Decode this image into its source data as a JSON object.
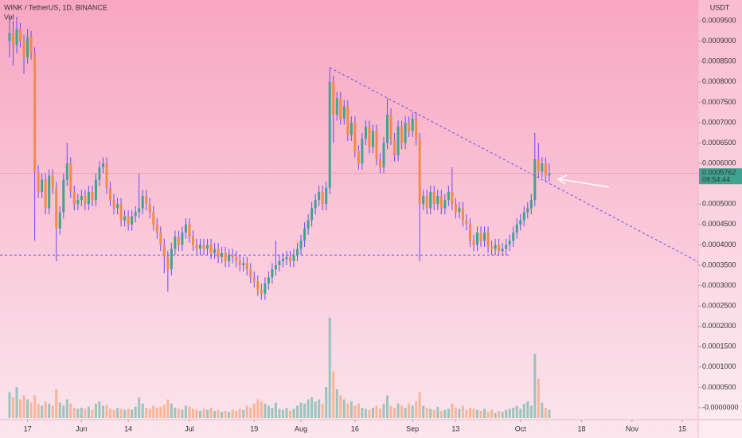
{
  "chart_data": {
    "type": "candlestick",
    "title": "WINK / TetherUS, 1D, BINANCE",
    "volume_label": "Vol",
    "y_axis_label": "USDT",
    "up_color": "#3da58f",
    "down_color": "#f48a45",
    "wick_color": "#6a4cf0",
    "line_color": "#6a4cf0",
    "last_price": {
      "value": 0.0005762,
      "label": "0.0005762"
    },
    "countdown": "09:54:44",
    "xlim": [
      -2.65,
      191.4
    ],
    "ylim": [
      -2.54e-05,
      0.001001
    ],
    "vlim": [
      0,
      100
    ],
    "xticks": [
      {
        "value": 5,
        "label": "17"
      },
      {
        "value": 20,
        "label": "Jun"
      },
      {
        "value": 33,
        "label": "14"
      },
      {
        "value": 50,
        "label": "Jul"
      },
      {
        "value": 68,
        "label": "19"
      },
      {
        "value": 81,
        "label": "Aug"
      },
      {
        "value": 96,
        "label": "16"
      },
      {
        "value": 112,
        "label": "Sep"
      },
      {
        "value": 124,
        "label": "13"
      },
      {
        "value": 142,
        "label": "Oct"
      },
      {
        "value": 159,
        "label": "18"
      },
      {
        "value": 173,
        "label": "Nov"
      },
      {
        "value": 187,
        "label": "15"
      }
    ],
    "yticks": [
      {
        "value": 0.00095,
        "label": "0.0009500"
      },
      {
        "value": 0.0009,
        "label": "0.0009000"
      },
      {
        "value": 0.00085,
        "label": "0.0008500"
      },
      {
        "value": 0.0008,
        "label": "0.0008000"
      },
      {
        "value": 0.00075,
        "label": "0.0007500"
      },
      {
        "value": 0.0007,
        "label": "0.0007000"
      },
      {
        "value": 0.00065,
        "label": "0.0006500"
      },
      {
        "value": 0.0006,
        "label": "0.0006000"
      },
      {
        "value": 0.0005,
        "label": "0.0005000"
      },
      {
        "value": 0.00045,
        "label": "0.0004500"
      },
      {
        "value": 0.0004,
        "label": "0.0004000"
      },
      {
        "value": 0.00035,
        "label": "0.0003500"
      },
      {
        "value": 0.0003,
        "label": "0.0003000"
      },
      {
        "value": 0.00025,
        "label": "0.0002500"
      },
      {
        "value": 0.0002,
        "label": "0.0002000"
      },
      {
        "value": 0.00015,
        "label": "0.0001500"
      },
      {
        "value": 0.0001,
        "label": "0.0001000"
      },
      {
        "value": 5e-05,
        "label": "0.0000500"
      },
      {
        "value": 0,
        "label": "-0.0000000"
      }
    ],
    "lines": [
      {
        "x": [
          89,
          191.4
        ],
        "y": [
          0.000835,
          0.000358
        ]
      },
      {
        "x": [
          -2.65,
          139
        ],
        "y": [
          0.000375,
          0.000375
        ]
      }
    ],
    "open": [
      0.0009,
      0.00092,
      0.00089,
      0.00093,
      0.0009,
      0.00086,
      0.00091,
      0.00087,
      0.00058,
      0.00053,
      0.00056,
      0.00049,
      0.00057,
      0.00054,
      0.00044,
      0.00048,
      0.00056,
      0.0006,
      0.00053,
      0.0005,
      0.00051,
      0.00052,
      0.0005,
      0.00053,
      0.00051,
      0.00056,
      0.00059,
      0.0006,
      0.00054,
      0.00051,
      0.00049,
      0.0005,
      0.00046,
      0.00047,
      0.00045,
      0.00047,
      0.00048,
      0.00049,
      0.00052,
      0.0005,
      0.00048,
      0.00045,
      0.00043,
      0.0004,
      0.00037,
      0.00034,
      0.00039,
      0.00042,
      0.0004,
      0.00043,
      0.00045,
      0.00042,
      0.0004,
      0.00039,
      0.0004,
      0.00039,
      0.0004,
      0.00038,
      0.00039,
      0.00037,
      0.00038,
      0.00036,
      0.000375,
      0.00037,
      0.00036,
      0.00035,
      0.000355,
      0.00034,
      0.00032,
      0.00031,
      0.00029,
      0.00028,
      0.000305,
      0.00032,
      0.00034,
      0.00035,
      0.00036,
      0.000365,
      0.00037,
      0.00036,
      0.000375,
      0.00039,
      0.00041,
      0.00044,
      0.00046,
      0.00049,
      0.00051,
      0.00053,
      0.0005,
      0.00054,
      0.0008,
      0.00072,
      0.00076,
      0.00071,
      0.00074,
      0.00067,
      0.0007,
      0.00063,
      0.0006,
      0.00066,
      0.00069,
      0.00064,
      0.00068,
      0.00061,
      0.00059,
      0.00065,
      0.00072,
      0.00066,
      0.00062,
      0.00069,
      0.00065,
      0.0007,
      0.00068,
      0.00071,
      0.00066,
      0.0005,
      0.00052,
      0.00049,
      0.00053,
      0.0005,
      0.00052,
      0.00049,
      0.00051,
      0.00053,
      0.0005,
      0.00048,
      0.00049,
      0.00046,
      0.00045,
      0.00041,
      0.0004,
      0.00043,
      0.00041,
      0.00043,
      0.000395,
      0.00039,
      0.0004,
      0.000385,
      0.00039,
      0.0004,
      0.00041,
      0.00043,
      0.00045,
      0.00046,
      0.00048,
      0.00049,
      0.00051,
      0.00061,
      0.00058,
      0.0006,
      0.00057
    ],
    "high": [
      0.00096,
      0.00095,
      0.00096,
      0.000945,
      0.000915,
      0.00093,
      0.000925,
      0.000885,
      0.000595,
      0.000575,
      0.000575,
      0.000585,
      0.000585,
      0.000555,
      0.000495,
      0.000575,
      0.00065,
      0.000615,
      0.000545,
      0.000525,
      0.000535,
      0.000535,
      0.000545,
      0.000545,
      0.000575,
      0.000605,
      0.000615,
      0.000615,
      0.000555,
      0.000525,
      0.000515,
      0.000515,
      0.000485,
      0.000485,
      0.000485,
      0.000495,
      0.000575,
      0.000535,
      0.000535,
      0.000515,
      0.000495,
      0.000465,
      0.000445,
      0.000415,
      0.000385,
      0.000405,
      0.000435,
      0.000435,
      0.000445,
      0.000465,
      0.000465,
      0.000435,
      0.000415,
      0.000415,
      0.000415,
      0.000415,
      0.000415,
      0.000405,
      0.000405,
      0.000395,
      0.000395,
      0.00039,
      0.00039,
      0.000385,
      0.000375,
      0.00037,
      0.00037,
      0.000355,
      0.000335,
      0.000325,
      0.000305,
      0.00032,
      0.000335,
      0.000355,
      0.00041,
      0.000375,
      0.00038,
      0.000385,
      0.000385,
      0.00039,
      0.000405,
      0.000425,
      0.000455,
      0.000475,
      0.000505,
      0.000525,
      0.000545,
      0.000545,
      0.000555,
      0.000835,
      0.000815,
      0.000775,
      0.000775,
      0.000755,
      0.000755,
      0.000715,
      0.000715,
      0.000645,
      0.000675,
      0.000705,
      0.000705,
      0.000695,
      0.000695,
      0.000625,
      0.000665,
      0.00076,
      0.000735,
      0.000675,
      0.000705,
      0.000705,
      0.000715,
      0.000715,
      0.000725,
      0.000725,
      0.000675,
      0.000535,
      0.000535,
      0.000545,
      0.000545,
      0.000535,
      0.000535,
      0.000525,
      0.000545,
      0.00059,
      0.000515,
      0.000505,
      0.000505,
      0.000475,
      0.000465,
      0.000425,
      0.000445,
      0.000445,
      0.000445,
      0.000445,
      0.00041,
      0.000415,
      0.000415,
      0.000405,
      0.000415,
      0.000425,
      0.000445,
      0.000465,
      0.000475,
      0.000495,
      0.000505,
      0.000525,
      0.000675,
      0.00065,
      0.000615,
      0.000615,
      0.0006
    ],
    "low": [
      0.00086,
      0.00084,
      0.00087,
      0.000885,
      0.00082,
      0.000845,
      0.000855,
      0.00041,
      0.000515,
      0.000515,
      0.000475,
      0.000475,
      0.000525,
      0.00036,
      0.000425,
      0.000465,
      0.000545,
      0.000515,
      0.000485,
      0.000485,
      0.000495,
      0.000485,
      0.000485,
      0.000495,
      0.000495,
      0.000545,
      0.000575,
      0.000525,
      0.000495,
      0.000475,
      0.000475,
      0.000445,
      0.000445,
      0.000435,
      0.000435,
      0.000455,
      0.000465,
      0.000475,
      0.000485,
      0.000465,
      0.000435,
      0.000415,
      0.000385,
      0.00033,
      0.000285,
      0.000325,
      0.000375,
      0.000385,
      0.000385,
      0.000415,
      0.000405,
      0.000385,
      0.000375,
      0.000375,
      0.000375,
      0.000375,
      0.000365,
      0.000365,
      0.000355,
      0.000355,
      0.000345,
      0.000345,
      0.000355,
      0.000345,
      0.000335,
      0.000335,
      0.000325,
      0.000305,
      0.000295,
      0.000275,
      0.000265,
      0.000265,
      0.00029,
      0.000305,
      0.000325,
      0.000335,
      0.000345,
      0.00035,
      0.000345,
      0.000345,
      0.00036,
      0.000375,
      0.000395,
      0.000425,
      0.000445,
      0.000475,
      0.000495,
      0.000485,
      0.000485,
      0.000525,
      0.00065,
      0.000705,
      0.000695,
      0.000695,
      0.000655,
      0.000655,
      0.000615,
      0.000585,
      0.000585,
      0.000645,
      0.000625,
      0.000625,
      0.000595,
      0.000575,
      0.000575,
      0.000635,
      0.000645,
      0.000605,
      0.000605,
      0.000635,
      0.000635,
      0.000665,
      0.000665,
      0.000645,
      0.00036,
      0.000485,
      0.000475,
      0.000475,
      0.000485,
      0.000485,
      0.000475,
      0.000475,
      0.000495,
      0.000485,
      0.000465,
      0.000465,
      0.000445,
      0.000435,
      0.000395,
      0.000385,
      0.000385,
      0.000395,
      0.000395,
      0.00038,
      0.000375,
      0.000375,
      0.000375,
      0.000375,
      0.000375,
      0.000385,
      0.000395,
      0.000415,
      0.000435,
      0.000445,
      0.000465,
      0.000475,
      0.000495,
      0.000565,
      0.000565,
      0.000555,
      0.000555
    ],
    "close": [
      0.00092,
      0.00089,
      0.00093,
      0.0009,
      0.00086,
      0.00091,
      0.00087,
      0.00058,
      0.00053,
      0.00056,
      0.00049,
      0.00057,
      0.00054,
      0.00044,
      0.00048,
      0.00056,
      0.0006,
      0.00053,
      0.0005,
      0.00051,
      0.00052,
      0.0005,
      0.00053,
      0.00051,
      0.00056,
      0.00059,
      0.0006,
      0.00054,
      0.00051,
      0.00049,
      0.0005,
      0.00046,
      0.00047,
      0.00045,
      0.00047,
      0.00048,
      0.00049,
      0.00052,
      0.0005,
      0.00048,
      0.00045,
      0.00043,
      0.0004,
      0.00037,
      0.00034,
      0.00039,
      0.00042,
      0.0004,
      0.00043,
      0.00045,
      0.00042,
      0.0004,
      0.00039,
      0.0004,
      0.00039,
      0.0004,
      0.00038,
      0.00039,
      0.00037,
      0.00038,
      0.00036,
      0.000375,
      0.00037,
      0.00036,
      0.00035,
      0.000355,
      0.00034,
      0.00032,
      0.00031,
      0.00029,
      0.00028,
      0.000305,
      0.00032,
      0.00034,
      0.00035,
      0.00036,
      0.000365,
      0.00037,
      0.00036,
      0.000375,
      0.00039,
      0.00041,
      0.00044,
      0.00046,
      0.00049,
      0.00051,
      0.00053,
      0.0005,
      0.00054,
      0.0008,
      0.00072,
      0.00076,
      0.00071,
      0.00074,
      0.00067,
      0.0007,
      0.00063,
      0.0006,
      0.00066,
      0.00069,
      0.00064,
      0.00068,
      0.00061,
      0.00059,
      0.00065,
      0.00072,
      0.00066,
      0.00062,
      0.00069,
      0.00065,
      0.0007,
      0.00068,
      0.00071,
      0.00066,
      0.0005,
      0.00052,
      0.00049,
      0.00053,
      0.0005,
      0.00052,
      0.00049,
      0.00051,
      0.00053,
      0.0005,
      0.00048,
      0.00049,
      0.00046,
      0.00045,
      0.00041,
      0.0004,
      0.00043,
      0.00041,
      0.00043,
      0.000395,
      0.00039,
      0.0004,
      0.000385,
      0.00039,
      0.0004,
      0.00041,
      0.00043,
      0.00045,
      0.00046,
      0.00048,
      0.00049,
      0.00051,
      0.00061,
      0.00058,
      0.0006,
      0.00057,
      0.0005762
    ],
    "volume": [
      25,
      20,
      30,
      18,
      22,
      18,
      15,
      22,
      14,
      12,
      16,
      14,
      12,
      28,
      15,
      12,
      18,
      14,
      10,
      9,
      10,
      9,
      11,
      8,
      14,
      16,
      12,
      13,
      9,
      8,
      10,
      9,
      8,
      9,
      8,
      11,
      20,
      14,
      10,
      9,
      12,
      10,
      11,
      13,
      18,
      14,
      10,
      9,
      8,
      12,
      11,
      9,
      8,
      7,
      9,
      8,
      10,
      7,
      8,
      6,
      7,
      6,
      8,
      7,
      9,
      8,
      12,
      10,
      14,
      18,
      16,
      14,
      12,
      10,
      15,
      9,
      8,
      10,
      7,
      9,
      12,
      15,
      14,
      18,
      20,
      16,
      18,
      14,
      30,
      97,
      45,
      28,
      22,
      18,
      14,
      16,
      12,
      14,
      10,
      9,
      8,
      10,
      12,
      9,
      14,
      22,
      12,
      10,
      14,
      12,
      10,
      14,
      12,
      16,
      25,
      12,
      10,
      9,
      8,
      11,
      7,
      8,
      9,
      14,
      10,
      9,
      12,
      8,
      10,
      9,
      8,
      7,
      9,
      6,
      8,
      5,
      7,
      6,
      8,
      9,
      10,
      12,
      9,
      14,
      16,
      12,
      62,
      38,
      15,
      10,
      8
    ]
  }
}
